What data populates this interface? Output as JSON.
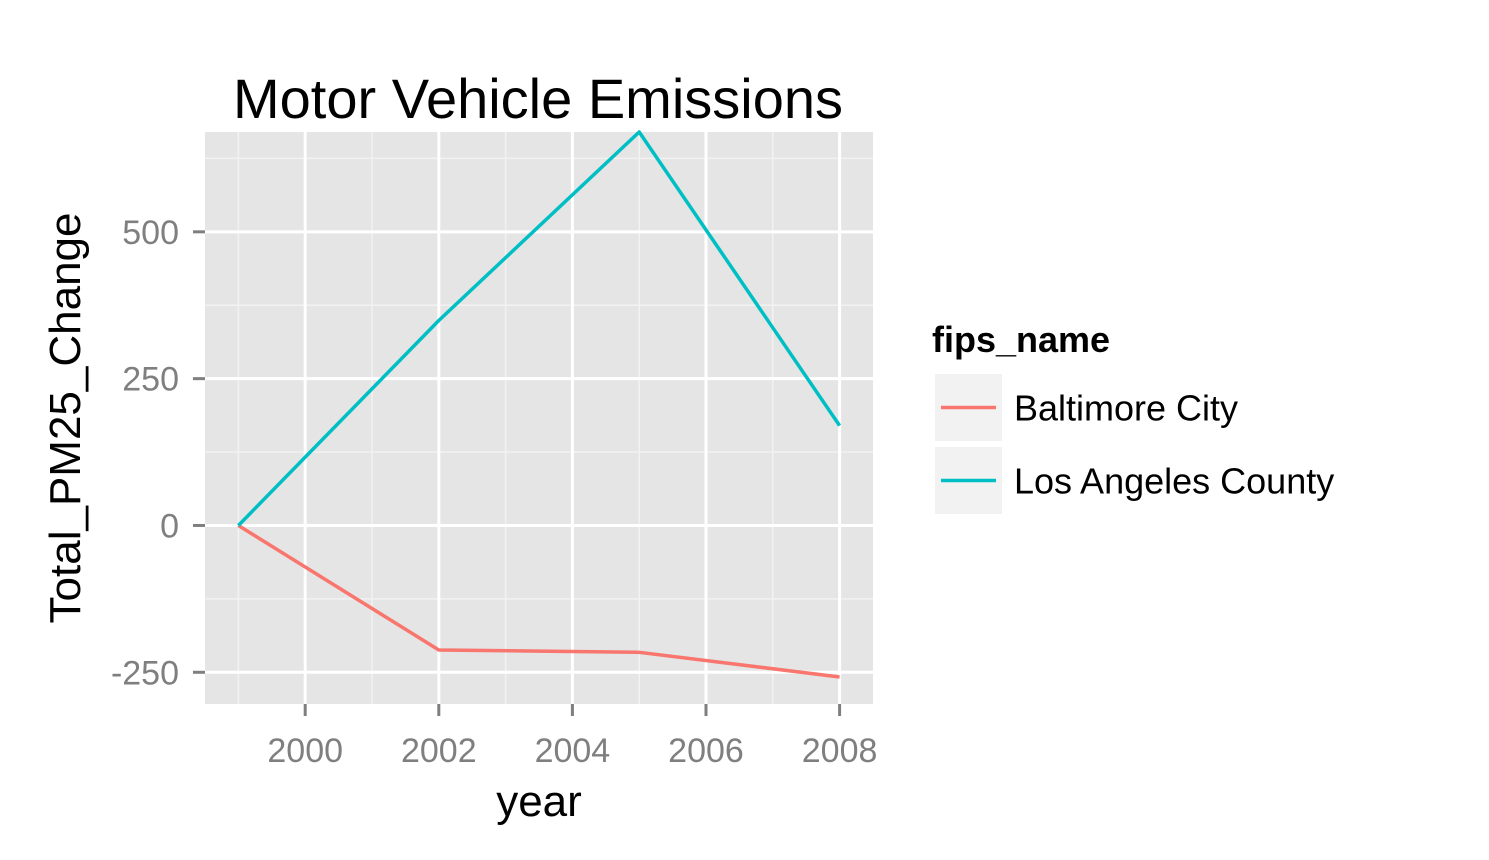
{
  "chart_data": {
    "type": "line",
    "title": "Motor Vehicle Emissions",
    "xlabel": "year",
    "ylabel": "Total_PM25_Change",
    "x": [
      1999,
      2002,
      2005,
      2008
    ],
    "xticks": [
      2000,
      2002,
      2004,
      2006,
      2008
    ],
    "xtick_labels": [
      "2000",
      "2002",
      "2004",
      "2006",
      "2008"
    ],
    "yticks": [
      -250,
      0,
      250,
      500
    ],
    "ytick_labels": [
      "-250",
      "0",
      "250",
      "500"
    ],
    "xlim": [
      1998.5,
      2008.5
    ],
    "ylim": [
      -304,
      670
    ],
    "grid": true,
    "legend": {
      "title": "fips_name",
      "position": "right"
    },
    "series": [
      {
        "name": "Baltimore City",
        "color": "#F8766D",
        "values": [
          0,
          -212,
          -216,
          -258
        ]
      },
      {
        "name": "Los Angeles County",
        "color": "#00BFC4",
        "values": [
          0,
          349,
          670,
          170
        ]
      }
    ]
  }
}
